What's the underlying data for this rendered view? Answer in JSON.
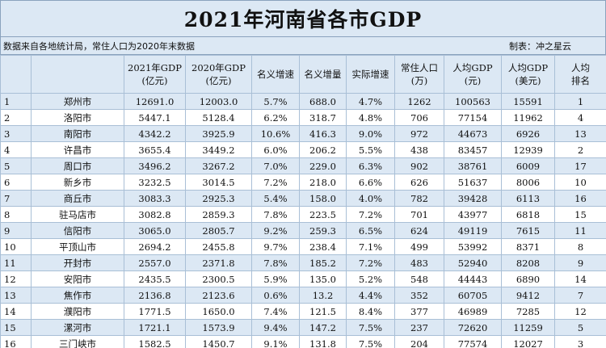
{
  "title": "2021年河南省各市GDP",
  "source_note": "数据来自各地统计局，常住人口为2020年末数据",
  "credit": "制表：冲之星云",
  "columns": [
    {
      "line1": "",
      "line2": ""
    },
    {
      "line1": "",
      "line2": ""
    },
    {
      "line1": "2021年GDP",
      "line2": "(亿元)"
    },
    {
      "line1": "2020年GDP",
      "line2": "(亿元)"
    },
    {
      "line1": "名义增速",
      "line2": ""
    },
    {
      "line1": "名义增量",
      "line2": ""
    },
    {
      "line1": "实际增速",
      "line2": ""
    },
    {
      "line1": "常住人口",
      "line2": "(万)"
    },
    {
      "line1": "人均GDP",
      "line2": "(元)"
    },
    {
      "line1": "人均GDP",
      "line2": "(美元)"
    },
    {
      "line1": "人均",
      "line2": "排名"
    }
  ],
  "rows": [
    [
      "1",
      "郑州市",
      "12691.0",
      "12003.0",
      "5.7%",
      "688.0",
      "4.7%",
      "1262",
      "100563",
      "15591",
      "1"
    ],
    [
      "2",
      "洛阳市",
      "5447.1",
      "5128.4",
      "6.2%",
      "318.7",
      "4.8%",
      "706",
      "77154",
      "11962",
      "4"
    ],
    [
      "3",
      "南阳市",
      "4342.2",
      "3925.9",
      "10.6%",
      "416.3",
      "9.0%",
      "972",
      "44673",
      "6926",
      "13"
    ],
    [
      "4",
      "许昌市",
      "3655.4",
      "3449.2",
      "6.0%",
      "206.2",
      "5.5%",
      "438",
      "83457",
      "12939",
      "2"
    ],
    [
      "5",
      "周口市",
      "3496.2",
      "3267.2",
      "7.0%",
      "229.0",
      "6.3%",
      "902",
      "38761",
      "6009",
      "17"
    ],
    [
      "6",
      "新乡市",
      "3232.5",
      "3014.5",
      "7.2%",
      "218.0",
      "6.6%",
      "626",
      "51637",
      "8006",
      "10"
    ],
    [
      "7",
      "商丘市",
      "3083.3",
      "2925.3",
      "5.4%",
      "158.0",
      "4.0%",
      "782",
      "39428",
      "6113",
      "16"
    ],
    [
      "8",
      "驻马店市",
      "3082.8",
      "2859.3",
      "7.8%",
      "223.5",
      "7.2%",
      "701",
      "43977",
      "6818",
      "15"
    ],
    [
      "9",
      "信阳市",
      "3065.0",
      "2805.7",
      "9.2%",
      "259.3",
      "6.5%",
      "624",
      "49119",
      "7615",
      "11"
    ],
    [
      "10",
      "平顶山市",
      "2694.2",
      "2455.8",
      "9.7%",
      "238.4",
      "7.1%",
      "499",
      "53992",
      "8371",
      "8"
    ],
    [
      "11",
      "开封市",
      "2557.0",
      "2371.8",
      "7.8%",
      "185.2",
      "7.2%",
      "483",
      "52940",
      "8208",
      "9"
    ],
    [
      "12",
      "安阳市",
      "2435.5",
      "2300.5",
      "5.9%",
      "135.0",
      "5.2%",
      "548",
      "44443",
      "6890",
      "14"
    ],
    [
      "13",
      "焦作市",
      "2136.8",
      "2123.6",
      "0.6%",
      "13.2",
      "4.4%",
      "352",
      "60705",
      "9412",
      "7"
    ],
    [
      "14",
      "濮阳市",
      "1771.5",
      "1650.0",
      "7.4%",
      "121.5",
      "8.4%",
      "377",
      "46989",
      "7285",
      "12"
    ],
    [
      "15",
      "漯河市",
      "1721.1",
      "1573.9",
      "9.4%",
      "147.2",
      "7.5%",
      "237",
      "72620",
      "11259",
      "5"
    ],
    [
      "16",
      "三门峡市",
      "1582.5",
      "1450.7",
      "9.1%",
      "131.8",
      "7.5%",
      "204",
      "77574",
      "12027",
      "3"
    ]
  ]
}
